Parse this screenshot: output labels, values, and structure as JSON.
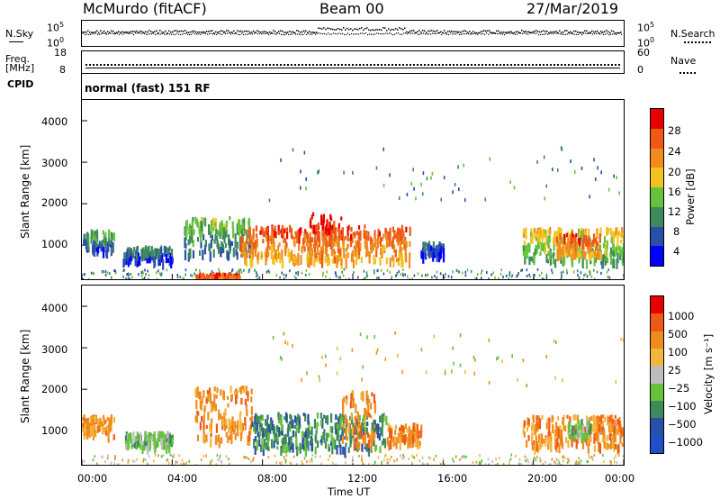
{
  "header": {
    "station": "McMurdo (fitACF)",
    "beam": "Beam 00",
    "date": "27/Mar/2019",
    "nsky_label": "N.Sky",
    "nsearch_label": "N.Search",
    "freq_label": "Freq.",
    "freq_unit": "[MHz]",
    "nave_label": "Nave",
    "cpid_label": "CPID",
    "cpid_value": "normal (fast) 151 RF",
    "noise_ticks_left": [
      "10^5",
      "10^0"
    ],
    "noise_ticks_right": [
      "10^5",
      "10^0"
    ],
    "freq_ticks": [
      "18",
      "8"
    ],
    "nave_ticks": [
      "60",
      "0"
    ]
  },
  "colors": {
    "power": [
      "#0000ff",
      "#2a4fa8",
      "#3e8a5c",
      "#66c23a",
      "#f2c21f",
      "#f08c1e",
      "#ee5a14",
      "#e60000"
    ],
    "velocity": [
      "#e60000",
      "#ee5a14",
      "#f08c1e",
      "#f2b63a",
      "#bdbdbd",
      "#66c23a",
      "#3e8a5c",
      "#2a4fa8",
      "#2050c8"
    ]
  },
  "chart_data": [
    {
      "type": "heatmap",
      "name": "power",
      "ylabel": "Slant Range [km]",
      "xlabel": "",
      "x_ticks": [],
      "y_ticks": [
        "1000",
        "2000",
        "3000",
        "4000"
      ],
      "yvals": [
        1000,
        2000,
        3000,
        4000
      ],
      "ylim": [
        180,
        4500
      ],
      "xlim_hours": [
        0,
        24
      ],
      "colorbar_label": "Power [dB]",
      "colorbar_ticks": [
        "4",
        "8",
        "12",
        "16",
        "20",
        "24",
        "28"
      ],
      "colorbar_range": [
        0,
        30
      ],
      "echo_bands": [
        {
          "t0": 0.0,
          "t1": 1.4,
          "r0": 900,
          "r1": 1400,
          "level": 12
        },
        {
          "t0": 1.8,
          "t1": 4.0,
          "r0": 650,
          "r1": 1000,
          "level": 10
        },
        {
          "t0": 4.5,
          "t1": 7.5,
          "r0": 800,
          "r1": 1700,
          "level": 14
        },
        {
          "t0": 7.0,
          "t1": 14.5,
          "r0": 650,
          "r1": 1500,
          "level": 26
        },
        {
          "t0": 10.0,
          "t1": 11.5,
          "r0": 700,
          "r1": 1800,
          "level": 28
        },
        {
          "t0": 5.0,
          "t1": 7.0,
          "r0": 200,
          "r1": 350,
          "level": 27
        },
        {
          "t0": 15.0,
          "t1": 16.0,
          "r0": 800,
          "r1": 1100,
          "level": 9
        },
        {
          "t0": 19.5,
          "t1": 24.0,
          "r0": 650,
          "r1": 1450,
          "level": 18
        },
        {
          "t0": 21.0,
          "t1": 23.0,
          "r0": 800,
          "r1": 1300,
          "level": 26
        }
      ]
    },
    {
      "type": "heatmap",
      "name": "velocity",
      "ylabel": "Slant Range [km]",
      "xlabel": "Time UT",
      "x_ticks": [
        "00:00",
        "04:00",
        "08:00",
        "12:00",
        "16:00",
        "20:00",
        "00:00"
      ],
      "xvals_hours": [
        0,
        4,
        8,
        12,
        16,
        20,
        24
      ],
      "y_ticks": [
        "1000",
        "2000",
        "3000",
        "4000"
      ],
      "yvals": [
        1000,
        2000,
        3000,
        4000
      ],
      "ylim": [
        180,
        4500
      ],
      "xlim_hours": [
        0,
        24
      ],
      "colorbar_label": "Velocity [m s⁻¹]",
      "colorbar_ticks": [
        "1000",
        "500",
        "100",
        "25",
        "−25",
        "−100",
        "−500",
        "−1000"
      ],
      "echo_bands": [
        {
          "t0": 0.0,
          "t1": 1.4,
          "r0": 900,
          "r1": 1400,
          "vclass": 2
        },
        {
          "t0": 1.8,
          "t1": 4.0,
          "r0": 650,
          "r1": 1000,
          "vclass": 5
        },
        {
          "t0": 5.0,
          "t1": 7.5,
          "r0": 800,
          "r1": 2100,
          "vclass": 2
        },
        {
          "t0": 7.5,
          "t1": 13.5,
          "r0": 600,
          "r1": 1450,
          "vclass": 6
        },
        {
          "t0": 11.5,
          "t1": 13.0,
          "r0": 700,
          "r1": 2000,
          "vclass": 2
        },
        {
          "t0": 13.5,
          "t1": 15.0,
          "r0": 750,
          "r1": 1200,
          "vclass": 2
        },
        {
          "t0": 19.5,
          "t1": 24.0,
          "r0": 650,
          "r1": 1400,
          "vclass": 2
        },
        {
          "t0": 21.5,
          "t1": 22.5,
          "r0": 900,
          "r1": 1300,
          "vclass": 5
        }
      ]
    }
  ]
}
